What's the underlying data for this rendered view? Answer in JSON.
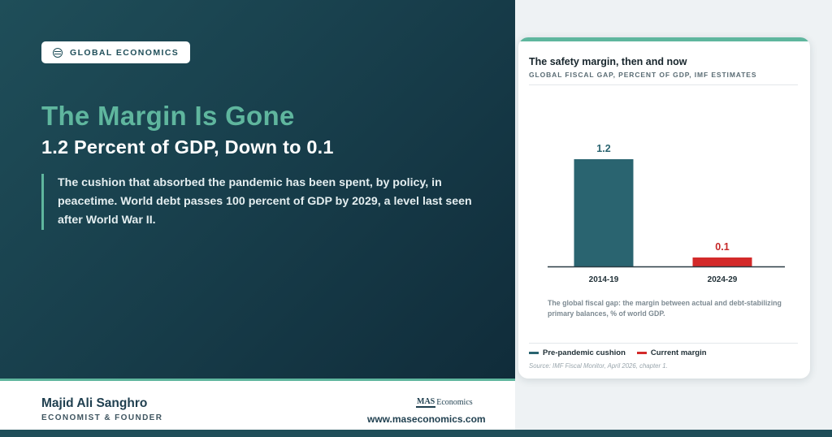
{
  "hero": {
    "tag": "GLOBAL ECONOMICS",
    "tag_icon": "globe-icon",
    "headline": "The Margin Is Gone",
    "subheadline": "1.2 Percent of GDP, Down to 0.1",
    "lede": "The cushion that absorbed the pandemic has been spent, by policy, in peacetime. World debt passes 100 percent of GDP by 2029, a level last seen after World War II."
  },
  "footer": {
    "author": "Majid Ali Sanghro",
    "role": "ECONOMIST & FOUNDER",
    "brand_box": "MAS",
    "brand_word": "Economics",
    "url": "www.maseconomics.com"
  },
  "card": {
    "title": "The safety margin, then and now",
    "subtitle": "GLOBAL FISCAL GAP, PERCENT OF GDP, IMF ESTIMATES",
    "note": "The global fiscal gap: the margin between actual and debt-stabilizing primary balances, % of world GDP.",
    "legend": [
      {
        "label": "Pre-pandemic cushion",
        "color": "#2a6470"
      },
      {
        "label": "Current margin",
        "color": "#d32a2a"
      }
    ],
    "source": "Source: IMF Fiscal Monitor, April 2026, chapter 1."
  },
  "colors": {
    "teal_dark": "#1f4e59",
    "accent_green": "#5fb69e",
    "bar_teal": "#2a6470",
    "bar_red": "#d32a2a",
    "label_red": "#c62828"
  },
  "chart_data": {
    "type": "bar",
    "categories": [
      "2014-19",
      "2024-29"
    ],
    "values": [
      1.2,
      0.1
    ],
    "data_labels": [
      "1.2",
      "0.1"
    ],
    "bar_colors": [
      "#2a6470",
      "#d32a2a"
    ],
    "ylim": [
      0,
      1.2
    ],
    "grid": false
  }
}
